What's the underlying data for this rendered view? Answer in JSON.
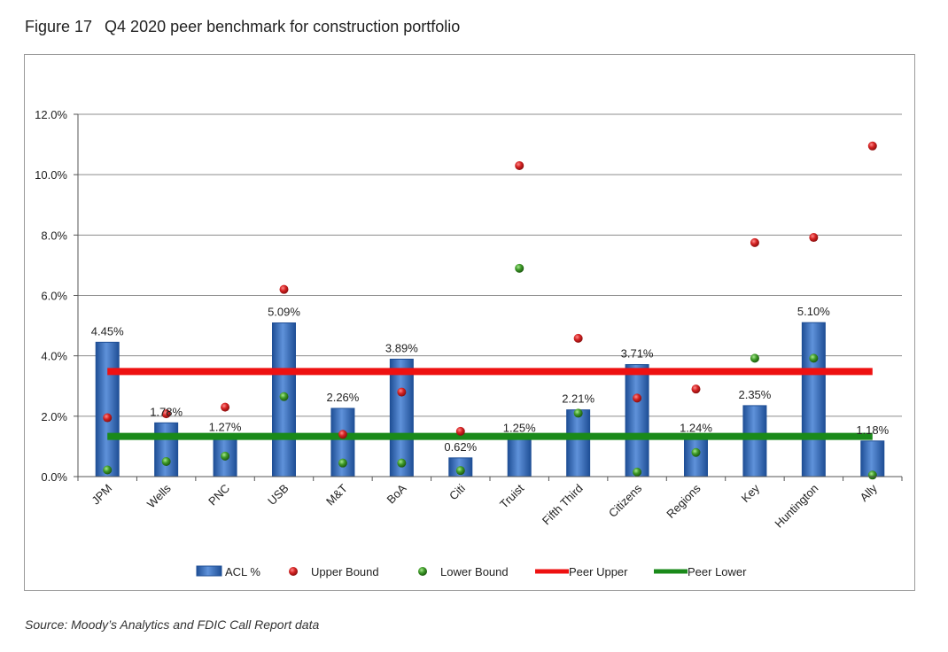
{
  "figure": {
    "number": "Figure 17",
    "title": "Q4 2020 peer benchmark for construction portfolio",
    "source": "Source: Moody’s Analytics and FDIC Call Report data"
  },
  "colors": {
    "bar": "#4a7cc8",
    "bar_dark": "#1f4f96",
    "upper_point": "#d42222",
    "lower_point": "#3e9a28",
    "peer_upper": "#ee1111",
    "peer_lower": "#1a8a1a",
    "grid": "#8c8c8c"
  },
  "chart_data": {
    "type": "bar",
    "categories": [
      "JPM",
      "Wells",
      "PNC",
      "USB",
      "M&T",
      "BoA",
      "Citi",
      "Truist",
      "Fifth Third",
      "Citizens",
      "Regions",
      "Key",
      "Huntington",
      "Ally"
    ],
    "series": [
      {
        "name": "ACL %",
        "type": "bar",
        "values": [
          4.45,
          1.78,
          1.27,
          5.09,
          2.26,
          3.89,
          0.62,
          1.25,
          2.21,
          3.71,
          1.24,
          2.35,
          5.1,
          1.18
        ],
        "labels": [
          "4.45%",
          "1.78%",
          "1.27%",
          "5.09%",
          "2.26%",
          "3.89%",
          "0.62%",
          "1.25%",
          "2.21%",
          "3.71%",
          "1.24%",
          "2.35%",
          "5.10%",
          "1.18%"
        ]
      },
      {
        "name": "Upper Bound",
        "type": "scatter",
        "values": [
          1.95,
          2.08,
          2.3,
          6.2,
          1.4,
          2.8,
          1.5,
          10.3,
          4.58,
          2.6,
          2.9,
          7.75,
          7.92,
          10.95
        ]
      },
      {
        "name": "Lower Bound",
        "type": "scatter",
        "values": [
          0.22,
          0.5,
          0.68,
          2.65,
          0.45,
          0.45,
          0.2,
          6.9,
          2.1,
          0.15,
          0.8,
          3.92,
          3.92,
          0.05
        ]
      },
      {
        "name": "Peer Upper",
        "type": "line",
        "value": 3.48
      },
      {
        "name": "Peer Lower",
        "type": "line",
        "value": 1.33
      }
    ],
    "ylim": [
      0,
      12
    ],
    "yticks": [
      0,
      2,
      4,
      6,
      8,
      10,
      12
    ],
    "ytick_labels": [
      "0.0%",
      "2.0%",
      "4.0%",
      "6.0%",
      "8.0%",
      "10.0%",
      "12.0%"
    ],
    "grid": true,
    "legend_position": "bottom",
    "xlabel": "",
    "ylabel": ""
  }
}
